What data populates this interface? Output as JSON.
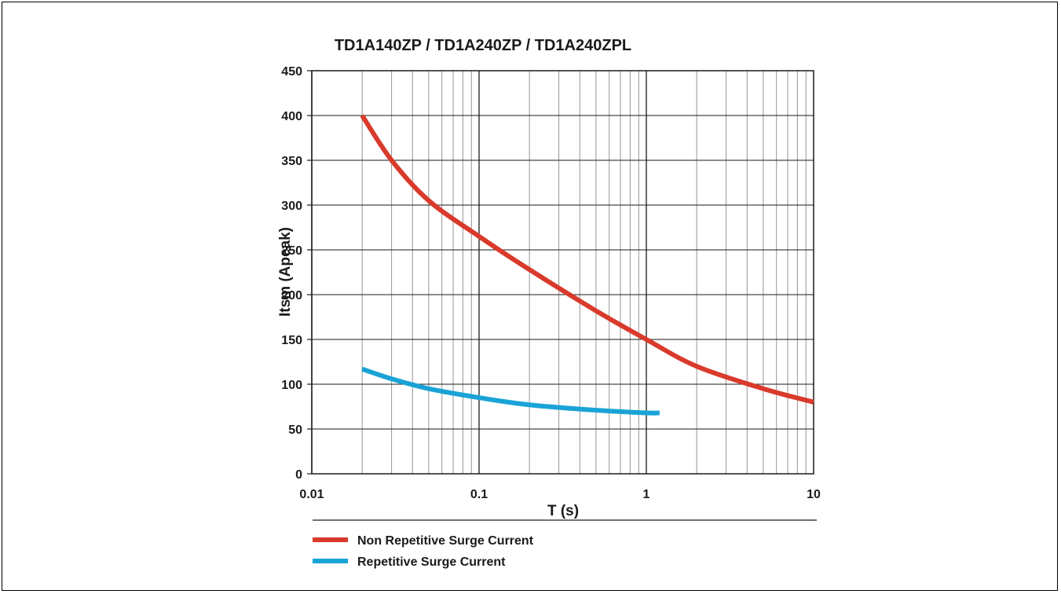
{
  "chart_data": {
    "type": "line",
    "title": "TD1A140ZP / TD1A240ZP / TD1A240ZPL",
    "xlabel": "T (s)",
    "ylabel": "Itsm (Apeak)",
    "x_scale": "log",
    "xlim": [
      0.01,
      10
    ],
    "ylim": [
      0,
      450
    ],
    "x_ticks": [
      "0.01",
      "0.1",
      "1",
      "10"
    ],
    "y_ticks": [
      "0",
      "50",
      "100",
      "150",
      "200",
      "250",
      "300",
      "350",
      "400",
      "450"
    ],
    "grid": true,
    "legend_position": "bottom-left",
    "series": [
      {
        "name": "Non Repetitive Surge Current",
        "color": "#d93a2b",
        "x": [
          0.02,
          0.03,
          0.05,
          0.1,
          0.2,
          0.5,
          1,
          2,
          5,
          10
        ],
        "y": [
          400,
          350,
          305,
          265,
          228,
          182,
          150,
          120,
          95,
          80
        ]
      },
      {
        "name": "Repetitive Surge Current",
        "color": "#1aa3d6",
        "x": [
          0.02,
          0.03,
          0.05,
          0.1,
          0.2,
          0.5,
          1,
          1.2
        ],
        "y": [
          117,
          106,
          95,
          85,
          77,
          71,
          68,
          68
        ]
      }
    ]
  }
}
